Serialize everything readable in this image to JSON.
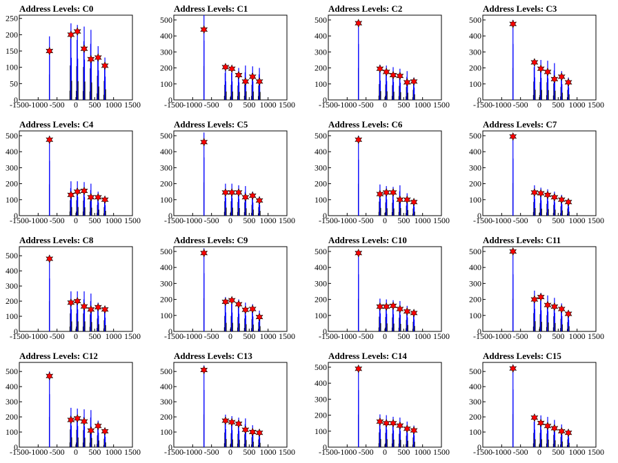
{
  "chart_data": [
    {
      "type": "bar",
      "title": "Address Levels: C0",
      "xlim": [
        -1500,
        1500
      ],
      "ylim": [
        0,
        260
      ],
      "yticks": [
        0,
        50,
        100,
        150,
        200,
        250
      ],
      "xticks": [
        -1500,
        -1000,
        -500,
        0,
        500,
        1000,
        1500
      ],
      "peaks_x": [
        -700,
        -130,
        40,
        220,
        400,
        590,
        770
      ],
      "peaks_y": [
        150,
        200,
        210,
        157,
        125,
        130,
        105
      ],
      "bar_tops": [
        195,
        235,
        230,
        225,
        215,
        165,
        130
      ],
      "bar_color": "#0000ff",
      "marker_color": "#ff0000"
    },
    {
      "type": "bar",
      "title": "Address Levels: C1",
      "xlim": [
        -1500,
        1500
      ],
      "ylim": [
        0,
        530
      ],
      "yticks": [
        0,
        100,
        200,
        300,
        400,
        500
      ],
      "xticks": [
        -1500,
        -1000,
        -500,
        0,
        500,
        1000,
        1500
      ],
      "peaks_x": [
        -700,
        -130,
        40,
        220,
        400,
        590,
        770
      ],
      "peaks_y": [
        440,
        205,
        195,
        155,
        115,
        145,
        115
      ],
      "bar_tops": [
        530,
        210,
        210,
        200,
        215,
        210,
        200
      ],
      "bar_color": "#0000ff",
      "marker_color": "#ff0000"
    },
    {
      "type": "bar",
      "title": "Address Levels: C2",
      "xlim": [
        -1500,
        1500
      ],
      "ylim": [
        0,
        530
      ],
      "yticks": [
        0,
        100,
        200,
        300,
        400,
        500
      ],
      "xticks": [
        -1500,
        -1000,
        -500,
        0,
        500,
        1000,
        1500
      ],
      "peaks_x": [
        -700,
        -130,
        40,
        220,
        400,
        590,
        770
      ],
      "peaks_y": [
        480,
        195,
        175,
        155,
        150,
        110,
        115
      ],
      "bar_tops": [
        500,
        220,
        215,
        205,
        195,
        180,
        140
      ],
      "bar_color": "#0000ff",
      "marker_color": "#ff0000"
    },
    {
      "type": "bar",
      "title": "Address Levels: C3",
      "xlim": [
        -1500,
        1500
      ],
      "ylim": [
        0,
        530
      ],
      "yticks": [
        0,
        100,
        200,
        300,
        400,
        500
      ],
      "xticks": [
        -1500,
        -1000,
        -500,
        0,
        500,
        1000,
        1500
      ],
      "peaks_x": [
        -700,
        -130,
        40,
        220,
        400,
        590,
        770
      ],
      "peaks_y": [
        475,
        235,
        195,
        175,
        130,
        145,
        110
      ],
      "bar_tops": [
        500,
        255,
        250,
        245,
        230,
        180,
        140
      ],
      "bar_color": "#0000ff",
      "marker_color": "#ff0000"
    },
    {
      "type": "bar",
      "title": "Address Levels: C4",
      "xlim": [
        -1500,
        1500
      ],
      "ylim": [
        0,
        530
      ],
      "yticks": [
        0,
        100,
        200,
        300,
        400,
        500
      ],
      "xticks": [
        -1500,
        -1000,
        -500,
        0,
        500,
        1000,
        1500
      ],
      "peaks_x": [
        -700,
        -130,
        40,
        220,
        400,
        590,
        770
      ],
      "peaks_y": [
        475,
        130,
        150,
        155,
        115,
        115,
        100
      ],
      "bar_tops": [
        490,
        215,
        215,
        210,
        200,
        150,
        120
      ],
      "bar_color": "#0000ff",
      "marker_color": "#ff0000"
    },
    {
      "type": "bar",
      "title": "Address Levels: C5",
      "xlim": [
        -1500,
        1500
      ],
      "ylim": [
        0,
        530
      ],
      "yticks": [
        0,
        100,
        200,
        300,
        400,
        500
      ],
      "xticks": [
        -1500,
        -1000,
        -500,
        0,
        500,
        1000,
        1500
      ],
      "peaks_x": [
        -700,
        -130,
        40,
        220,
        400,
        590,
        770
      ],
      "peaks_y": [
        460,
        145,
        145,
        145,
        115,
        125,
        95
      ],
      "bar_tops": [
        520,
        200,
        200,
        190,
        185,
        150,
        120
      ],
      "bar_color": "#0000ff",
      "marker_color": "#ff0000"
    },
    {
      "type": "bar",
      "title": "Address Levels: C6",
      "xlim": [
        -1500,
        1500
      ],
      "ylim": [
        0,
        530
      ],
      "yticks": [
        0,
        100,
        200,
        300,
        400,
        500
      ],
      "xticks": [
        -1500,
        -1000,
        -500,
        0,
        500,
        1000,
        1500
      ],
      "peaks_x": [
        -700,
        -130,
        40,
        220,
        400,
        590,
        770
      ],
      "peaks_y": [
        475,
        135,
        145,
        145,
        100,
        100,
        85
      ],
      "bar_tops": [
        500,
        195,
        185,
        180,
        190,
        140,
        100
      ],
      "bar_color": "#0000ff",
      "marker_color": "#ff0000"
    },
    {
      "type": "bar",
      "title": "Address Levels: C7",
      "xlim": [
        -1500,
        1500
      ],
      "ylim": [
        0,
        530
      ],
      "yticks": [
        0,
        100,
        200,
        300,
        400,
        500
      ],
      "xticks": [
        -1500,
        -1000,
        -500,
        0,
        500,
        1000,
        1500
      ],
      "peaks_x": [
        -700,
        -130,
        40,
        220,
        400,
        590,
        770
      ],
      "peaks_y": [
        495,
        145,
        140,
        130,
        115,
        100,
        85
      ],
      "bar_tops": [
        510,
        190,
        175,
        165,
        150,
        130,
        100
      ],
      "bar_color": "#0000ff",
      "marker_color": "#ff0000"
    },
    {
      "type": "bar",
      "title": "Address Levels: C8",
      "xlim": [
        -1500,
        1500
      ],
      "ylim": [
        0,
        560
      ],
      "yticks": [
        0,
        100,
        200,
        300,
        400,
        500
      ],
      "xticks": [
        -1500,
        -1000,
        -500,
        0,
        500,
        1000,
        1500
      ],
      "peaks_x": [
        -700,
        -130,
        40,
        220,
        400,
        590,
        770
      ],
      "peaks_y": [
        480,
        190,
        200,
        165,
        145,
        160,
        145
      ],
      "bar_tops": [
        500,
        265,
        265,
        265,
        250,
        190,
        165
      ],
      "bar_color": "#0000ff",
      "marker_color": "#ff0000"
    },
    {
      "type": "bar",
      "title": "Address Levels: C9",
      "xlim": [
        -1500,
        1500
      ],
      "ylim": [
        0,
        530
      ],
      "yticks": [
        0,
        100,
        200,
        300,
        400,
        500
      ],
      "xticks": [
        -1500,
        -1000,
        -500,
        0,
        500,
        1000,
        1500
      ],
      "peaks_x": [
        -700,
        -130,
        40,
        220,
        400,
        590,
        770
      ],
      "peaks_y": [
        490,
        185,
        195,
        170,
        135,
        140,
        90
      ],
      "bar_tops": [
        520,
        215,
        215,
        200,
        180,
        170,
        130
      ],
      "bar_color": "#0000ff",
      "marker_color": "#ff0000"
    },
    {
      "type": "bar",
      "title": "Address Levels: C10",
      "xlim": [
        -1500,
        1500
      ],
      "ylim": [
        0,
        530
      ],
      "yticks": [
        0,
        100,
        200,
        300,
        400,
        500
      ],
      "xticks": [
        -1500,
        -1000,
        -500,
        0,
        500,
        1000,
        1500
      ],
      "peaks_x": [
        -700,
        -130,
        40,
        220,
        400,
        590,
        770
      ],
      "peaks_y": [
        490,
        155,
        155,
        160,
        140,
        125,
        115
      ],
      "bar_tops": [
        510,
        205,
        200,
        195,
        190,
        160,
        135
      ],
      "bar_color": "#0000ff",
      "marker_color": "#ff0000"
    },
    {
      "type": "bar",
      "title": "Address Levels: C11",
      "xlim": [
        -1500,
        1500
      ],
      "ylim": [
        0,
        530
      ],
      "yticks": [
        0,
        100,
        200,
        300,
        400,
        500
      ],
      "xticks": [
        -1500,
        -1000,
        -500,
        0,
        500,
        1000,
        1500
      ],
      "peaks_x": [
        -700,
        -130,
        40,
        220,
        400,
        590,
        770
      ],
      "peaks_y": [
        500,
        200,
        215,
        165,
        155,
        140,
        110
      ],
      "bar_tops": [
        510,
        255,
        240,
        225,
        210,
        175,
        130
      ],
      "bar_color": "#0000ff",
      "marker_color": "#ff0000"
    },
    {
      "type": "bar",
      "title": "Address Levels: C12",
      "xlim": [
        -1500,
        1500
      ],
      "ylim": [
        0,
        560
      ],
      "yticks": [
        0,
        100,
        200,
        300,
        400,
        500
      ],
      "xticks": [
        -1500,
        -1000,
        -500,
        0,
        500,
        1000,
        1500
      ],
      "peaks_x": [
        -700,
        -130,
        40,
        220,
        400,
        590,
        770
      ],
      "peaks_y": [
        470,
        180,
        190,
        170,
        110,
        140,
        105
      ],
      "bar_tops": [
        500,
        260,
        255,
        250,
        245,
        175,
        125
      ],
      "bar_color": "#0000ff",
      "marker_color": "#ff0000"
    },
    {
      "type": "bar",
      "title": "Address Levels: C13",
      "xlim": [
        -1500,
        1500
      ],
      "ylim": [
        0,
        560
      ],
      "yticks": [
        0,
        100,
        200,
        300,
        400,
        500
      ],
      "xticks": [
        -1500,
        -1000,
        -500,
        0,
        500,
        1000,
        1500
      ],
      "peaks_x": [
        -700,
        -130,
        40,
        220,
        400,
        590,
        770
      ],
      "peaks_y": [
        510,
        175,
        165,
        155,
        115,
        100,
        95
      ],
      "bar_tops": [
        540,
        215,
        205,
        195,
        190,
        145,
        115
      ],
      "bar_color": "#0000ff",
      "marker_color": "#ff0000"
    },
    {
      "type": "bar",
      "title": "Address Levels: C14",
      "xlim": [
        -1500,
        1500
      ],
      "ylim": [
        0,
        530
      ],
      "yticks": [
        0,
        100,
        200,
        300,
        400,
        500
      ],
      "xticks": [
        -1500,
        -1000,
        -500,
        0,
        500,
        1000,
        1500
      ],
      "peaks_x": [
        -700,
        -130,
        40,
        220,
        400,
        590,
        770
      ],
      "peaks_y": [
        490,
        160,
        150,
        150,
        135,
        115,
        105
      ],
      "bar_tops": [
        510,
        205,
        200,
        190,
        185,
        160,
        135
      ],
      "bar_color": "#0000ff",
      "marker_color": "#ff0000"
    },
    {
      "type": "bar",
      "title": "Address Levels: C15",
      "xlim": [
        -1500,
        1500
      ],
      "ylim": [
        0,
        560
      ],
      "yticks": [
        0,
        100,
        200,
        300,
        400,
        500
      ],
      "xticks": [
        -1500,
        -1000,
        -500,
        0,
        500,
        1000,
        1500
      ],
      "peaks_x": [
        -700,
        -130,
        40,
        220,
        400,
        590,
        770
      ],
      "peaks_y": [
        520,
        195,
        160,
        140,
        125,
        105,
        95
      ],
      "bar_tops": [
        545,
        210,
        210,
        200,
        180,
        150,
        115
      ],
      "bar_color": "#0000ff",
      "marker_color": "#ff0000"
    }
  ]
}
